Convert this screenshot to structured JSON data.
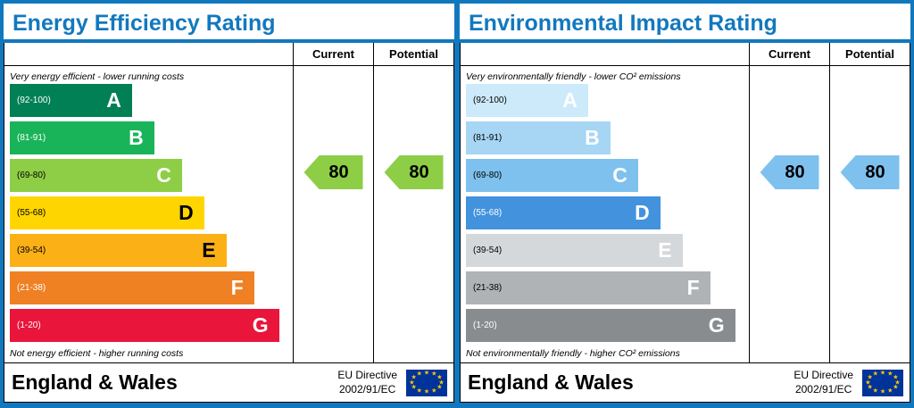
{
  "panels": [
    {
      "title": "Energy Efficiency Rating",
      "columns": {
        "current": "Current",
        "potential": "Potential"
      },
      "top_note": "Very energy efficient - lower running costs",
      "bottom_note": "Not energy efficient - higher running costs",
      "bands": [
        {
          "letter": "A",
          "range": "(92-100)",
          "color": "#008054",
          "range_color": "#ffffff",
          "letter_color": "#ffffff",
          "width_pct": 44
        },
        {
          "letter": "B",
          "range": "(81-91)",
          "color": "#19b459",
          "range_color": "#ffffff",
          "letter_color": "#ffffff",
          "width_pct": 52
        },
        {
          "letter": "C",
          "range": "(69-80)",
          "color": "#8dce46",
          "range_color": "#000000",
          "letter_color": "#ffffff",
          "width_pct": 62
        },
        {
          "letter": "D",
          "range": "(55-68)",
          "color": "#ffd500",
          "range_color": "#000000",
          "letter_color": "#000000",
          "width_pct": 70
        },
        {
          "letter": "E",
          "range": "(39-54)",
          "color": "#fbb016",
          "range_color": "#000000",
          "letter_color": "#000000",
          "width_pct": 78
        },
        {
          "letter": "F",
          "range": "(21-38)",
          "color": "#ef8023",
          "range_color": "#ffffff",
          "letter_color": "#ffffff",
          "width_pct": 88
        },
        {
          "letter": "G",
          "range": "(1-20)",
          "color": "#e9153b",
          "range_color": "#ffffff",
          "letter_color": "#ffffff",
          "width_pct": 97
        }
      ],
      "current_value": "80",
      "potential_value": "80",
      "arrow_color": "#8dce46",
      "footer": {
        "region": "England & Wales",
        "directive_line1": "EU Directive",
        "directive_line2": "2002/91/EC"
      }
    },
    {
      "title": "Environmental Impact Rating",
      "columns": {
        "current": "Current",
        "potential": "Potential"
      },
      "top_note": "Very environmentally friendly - lower CO² emissions",
      "bottom_note": "Not environmentally friendly - higher CO² emissions",
      "bands": [
        {
          "letter": "A",
          "range": "(92-100)",
          "color": "#cdeafb",
          "range_color": "#000000",
          "letter_color": "#ffffff",
          "width_pct": 44
        },
        {
          "letter": "B",
          "range": "(81-91)",
          "color": "#a6d6f3",
          "range_color": "#000000",
          "letter_color": "#ffffff",
          "width_pct": 52
        },
        {
          "letter": "C",
          "range": "(69-80)",
          "color": "#7ec1ee",
          "range_color": "#000000",
          "letter_color": "#ffffff",
          "width_pct": 62
        },
        {
          "letter": "D",
          "range": "(55-68)",
          "color": "#4292dd",
          "range_color": "#ffffff",
          "letter_color": "#ffffff",
          "width_pct": 70
        },
        {
          "letter": "E",
          "range": "(39-54)",
          "color": "#d5d8da",
          "range_color": "#000000",
          "letter_color": "#ffffff",
          "width_pct": 78
        },
        {
          "letter": "F",
          "range": "(21-38)",
          "color": "#b0b3b5",
          "range_color": "#000000",
          "letter_color": "#ffffff",
          "width_pct": 88
        },
        {
          "letter": "G",
          "range": "(1-20)",
          "color": "#898c8e",
          "range_color": "#ffffff",
          "letter_color": "#ffffff",
          "width_pct": 97
        }
      ],
      "current_value": "80",
      "potential_value": "80",
      "arrow_color": "#7ec1ee",
      "footer": {
        "region": "England & Wales",
        "directive_line1": "EU Directive",
        "directive_line2": "2002/91/EC"
      }
    }
  ],
  "colors": {
    "frame_blue": "#1278be",
    "eu_flag_blue": "#003399",
    "eu_star_yellow": "#ffcc00"
  },
  "chart_data": [
    {
      "type": "bar",
      "title": "Energy Efficiency Rating",
      "categories": [
        "A (92-100)",
        "B (81-91)",
        "C (69-80)",
        "D (55-68)",
        "E (39-54)",
        "F (21-38)",
        "G (1-20)"
      ],
      "series": [
        {
          "name": "Current",
          "values": [
            80
          ]
        },
        {
          "name": "Potential",
          "values": [
            80
          ]
        }
      ],
      "current_band": "C",
      "potential_band": "C",
      "notes": [
        "Very energy efficient - lower running costs",
        "Not energy efficient - higher running costs"
      ],
      "footer": "England & Wales — EU Directive 2002/91/EC"
    },
    {
      "type": "bar",
      "title": "Environmental Impact Rating",
      "categories": [
        "A (92-100)",
        "B (81-91)",
        "C (69-80)",
        "D (55-68)",
        "E (39-54)",
        "F (21-38)",
        "G (1-20)"
      ],
      "series": [
        {
          "name": "Current",
          "values": [
            80
          ]
        },
        {
          "name": "Potential",
          "values": [
            80
          ]
        }
      ],
      "current_band": "C",
      "potential_band": "C",
      "notes": [
        "Very environmentally friendly - lower CO² emissions",
        "Not environmentally friendly - higher CO² emissions"
      ],
      "footer": "England & Wales — EU Directive 2002/91/EC"
    }
  ]
}
